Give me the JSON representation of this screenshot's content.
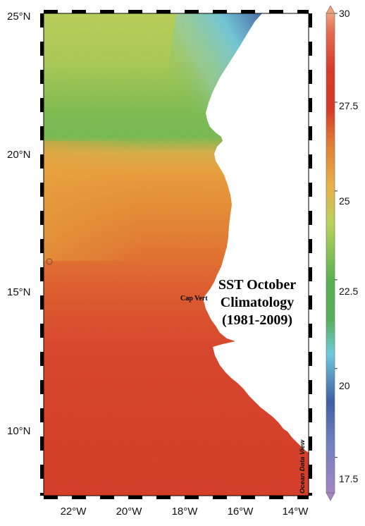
{
  "map": {
    "title_lines": [
      "SST October",
      "Climatology",
      "(1981-2009)"
    ],
    "place_label": "Cap Vert",
    "watermark": "Ocean Data View",
    "lat_labels": [
      "25°N",
      "20°N",
      "15°N",
      "10°N"
    ],
    "lon_labels": [
      "22°W",
      "20°W",
      "18°W",
      "16°W",
      "14°W"
    ],
    "lat_range_deg": [
      7.5,
      25
    ],
    "lon_range_deg": [
      -23.2,
      -13.1
    ]
  },
  "colorbar": {
    "variable": "SST",
    "range": [
      16.5,
      30
    ],
    "tick_labels": [
      "30",
      "27.5",
      "25",
      "22.5",
      "20",
      "17.5"
    ],
    "colors": {
      "purple": "#a585c4",
      "blue": "#3e5fa5",
      "cyan": "#6ec9dc",
      "green": "#56b150",
      "yellow_green": "#b7d35a",
      "orange": "#e59a36",
      "red": "#d73a27",
      "deep_red": "#c8302a",
      "peach": "#f0a07d"
    }
  },
  "land_color": "#ffffff"
}
